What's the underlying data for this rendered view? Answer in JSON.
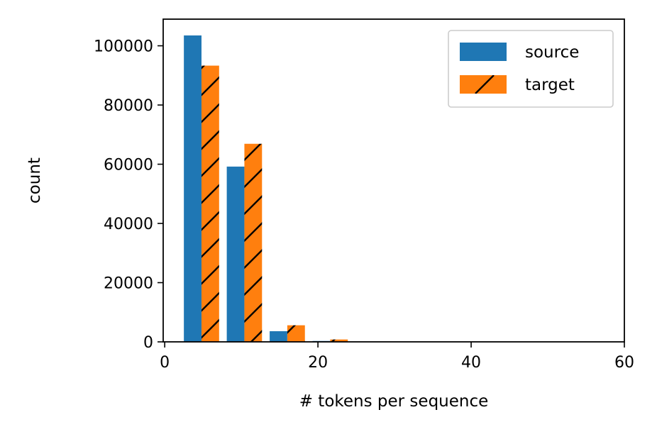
{
  "chart_data": {
    "type": "bar",
    "xlabel": "# tokens per sequence",
    "ylabel": "count",
    "xlim": [
      -0.2,
      60
    ],
    "ylim": [
      0,
      109000
    ],
    "x_ticks": [
      0,
      20,
      40,
      60
    ],
    "y_ticks": [
      0,
      20000,
      40000,
      60000,
      80000,
      100000
    ],
    "x_tick_labels": [
      "0",
      "20",
      "40",
      "60"
    ],
    "y_tick_labels": [
      "0",
      "20000",
      "40000",
      "60000",
      "80000",
      "100000"
    ],
    "legend_position": "top-right",
    "grid": false,
    "series": [
      {
        "name": "source",
        "color": "#1f77b4",
        "hatch": false,
        "bars": [
          {
            "x0": 2.5,
            "x1": 4.8,
            "value": 103500
          },
          {
            "x0": 8.1,
            "x1": 10.4,
            "value": 59200
          },
          {
            "x0": 13.7,
            "x1": 16.0,
            "value": 3600
          },
          {
            "x0": 19.3,
            "x1": 21.6,
            "value": 300
          },
          {
            "x0": 24.9,
            "x1": 27.2,
            "value": 0
          }
        ]
      },
      {
        "name": "target",
        "color": "#ff7f0e",
        "hatch": true,
        "bars": [
          {
            "x0": 4.8,
            "x1": 7.1,
            "value": 93300
          },
          {
            "x0": 10.4,
            "x1": 12.7,
            "value": 66900
          },
          {
            "x0": 16.0,
            "x1": 18.3,
            "value": 5600
          },
          {
            "x0": 21.6,
            "x1": 23.9,
            "value": 800
          },
          {
            "x0": 27.2,
            "x1": 29.5,
            "value": 100
          }
        ]
      }
    ]
  }
}
